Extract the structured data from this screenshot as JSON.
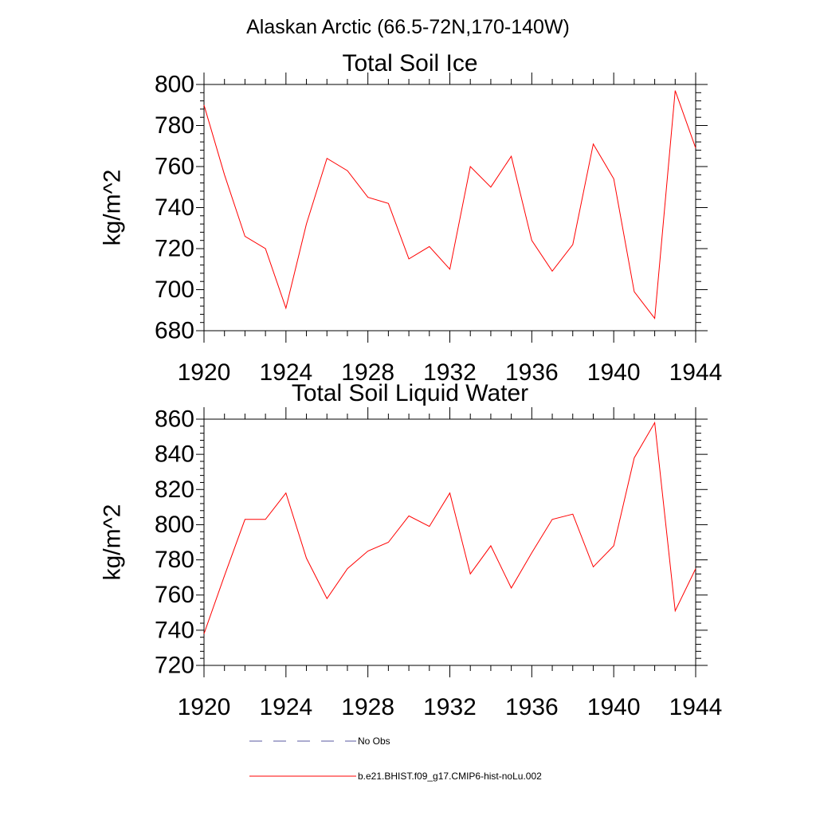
{
  "figure": {
    "title": "Alaskan Arctic (66.5-72N,170-140W)"
  },
  "legend": {
    "items": [
      {
        "label": "No Obs",
        "color": "#5a5aa0",
        "style": "dashed"
      },
      {
        "label": "b.e21.BHIST.f09_g17.CMIP6-hist-noLu.002",
        "color": "#ff0000",
        "style": "solid"
      }
    ]
  },
  "chart_data": [
    {
      "type": "line",
      "title": "Total Soil Ice",
      "xlabel": "",
      "ylabel": "kg/m^2",
      "xlim": [
        1920,
        1944
      ],
      "ylim": [
        680,
        800
      ],
      "xticks": [
        1920,
        1924,
        1928,
        1932,
        1936,
        1940,
        1944
      ],
      "yticks": [
        680,
        700,
        720,
        740,
        760,
        780,
        800
      ],
      "grid": false,
      "x": [
        1920,
        1921,
        1922,
        1923,
        1924,
        1925,
        1926,
        1927,
        1928,
        1929,
        1930,
        1931,
        1932,
        1933,
        1934,
        1935,
        1936,
        1937,
        1938,
        1939,
        1940,
        1941,
        1942,
        1943,
        1944
      ],
      "series": [
        {
          "color": "#ff0000",
          "values": [
            790,
            756,
            726,
            720,
            691,
            732,
            764,
            758,
            745,
            742,
            715,
            721,
            710,
            760,
            750,
            765,
            724,
            709,
            722,
            771,
            754,
            699,
            686,
            797,
            769
          ]
        }
      ]
    },
    {
      "type": "line",
      "title": "Total Soil Liquid Water",
      "xlabel": "",
      "ylabel": "kg/m^2",
      "xlim": [
        1920,
        1944
      ],
      "ylim": [
        720,
        860
      ],
      "xticks": [
        1920,
        1924,
        1928,
        1932,
        1936,
        1940,
        1944
      ],
      "yticks": [
        720,
        740,
        760,
        780,
        800,
        820,
        840,
        860
      ],
      "grid": false,
      "x": [
        1920,
        1921,
        1922,
        1923,
        1924,
        1925,
        1926,
        1927,
        1928,
        1929,
        1930,
        1931,
        1932,
        1933,
        1934,
        1935,
        1936,
        1937,
        1938,
        1939,
        1940,
        1941,
        1942,
        1943,
        1944
      ],
      "series": [
        {
          "color": "#ff0000",
          "values": [
            738,
            771,
            803,
            803,
            818,
            781,
            758,
            775,
            785,
            790,
            805,
            799,
            818,
            772,
            788,
            764,
            784,
            803,
            806,
            776,
            788,
            838,
            858,
            751,
            775
          ]
        }
      ]
    }
  ]
}
